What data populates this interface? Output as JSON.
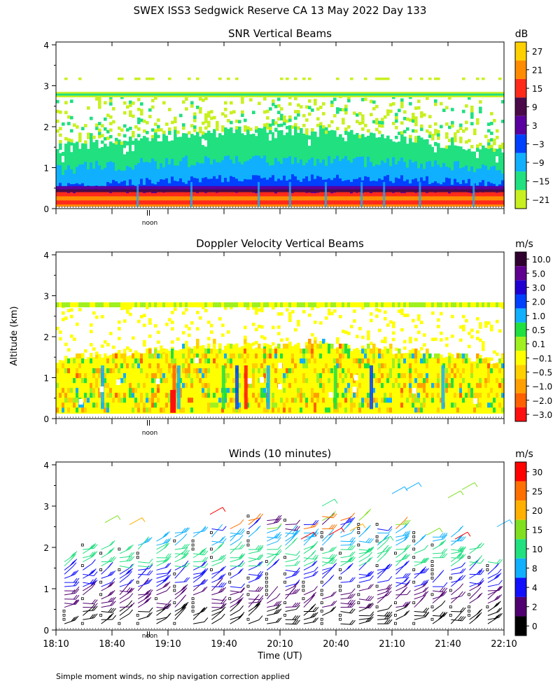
{
  "title": "SWEX ISS3 Sedgwick Reserve CA  13 May 2022 Day 133",
  "ylabel": "Altitude (km)",
  "xlabel": "Time (UT)",
  "footnote": "Simple moment winds, no ship navigation correction applied",
  "noon_label": "noon",
  "x_ticks": [
    "18:10",
    "18:40",
    "19:10",
    "19:40",
    "20:10",
    "20:40",
    "21:10",
    "21:40",
    "22:10"
  ],
  "y_ticks": [
    "0",
    "1",
    "2",
    "3",
    "4"
  ],
  "chart_data": [
    {
      "type": "heatmap",
      "title": "SNR Vertical Beams",
      "units": "dB",
      "ylim": [
        0,
        4
      ],
      "x_range": [
        "18:10",
        "22:10"
      ],
      "colorbar_labels": [
        "27",
        "21",
        "15",
        "9",
        "3",
        "−3",
        "−9",
        "−15",
        "−21"
      ],
      "colors": [
        "#ffd000",
        "#ff8c00",
        "#ff2a1a",
        "#4a0a4a",
        "#5a00a0",
        "#0040ff",
        "#10b0ff",
        "#20e080",
        "#c8f020"
      ],
      "layers": [
        {
          "top": 2.9,
          "level": "-21",
          "note": "sparse"
        },
        {
          "top": 1.5,
          "level": "-15"
        },
        {
          "top": 1.0,
          "level": "-9"
        },
        {
          "top": 0.6,
          "level": "3"
        },
        {
          "top": 0.45,
          "level": "15"
        }
      ],
      "band_altitude": 2.78
    },
    {
      "type": "heatmap",
      "title": "Doppler Velocity Vertical Beams",
      "units": "m/s",
      "ylim": [
        0,
        4
      ],
      "x_range": [
        "18:10",
        "22:10"
      ],
      "colorbar_labels": [
        "10.0",
        "5.0",
        "3.0",
        "2.0",
        "1.0",
        "0.5",
        "0.1",
        "−0.1",
        "−0.5",
        "−1.0",
        "−2.0",
        "−3.0"
      ],
      "colors": [
        "#300030",
        "#600090",
        "#2000d0",
        "#0040ff",
        "#10b0ff",
        "#20e040",
        "#a0f020",
        "#ffff00",
        "#ffd000",
        "#ffa000",
        "#ff6000",
        "#ff1010"
      ],
      "band_altitude": 2.78
    },
    {
      "type": "scatter",
      "title": "Winds (10 minutes)",
      "units": "m/s",
      "ylim": [
        0,
        4
      ],
      "x_range": [
        "18:10",
        "22:10"
      ],
      "colorbar_labels": [
        "30",
        "25",
        "20",
        "15",
        "10",
        "8",
        "4",
        "2",
        "0"
      ],
      "colors": [
        "#ff0000",
        "#ff7000",
        "#ffb000",
        "#80e020",
        "#20e080",
        "#10b0ff",
        "#1010ff",
        "#500070",
        "#000000"
      ]
    }
  ]
}
